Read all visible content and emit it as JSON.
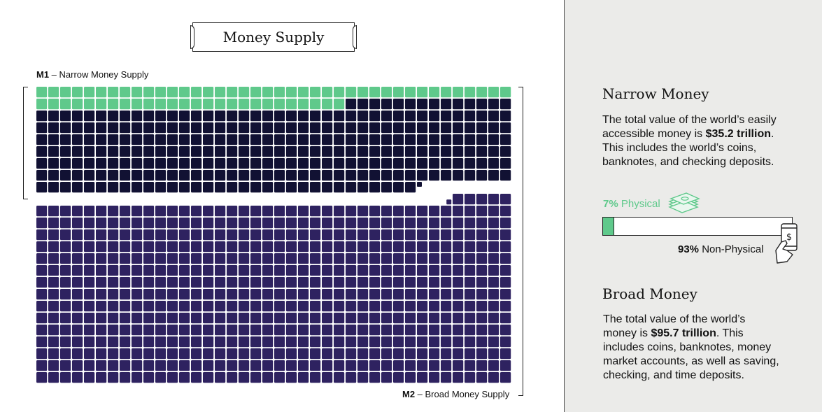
{
  "title": "Money Supply",
  "labels": {
    "m1_code": "M1",
    "m1_text": " – Narrow Money Supply",
    "m2_code": "M2",
    "m2_text": " – Broad Money Supply"
  },
  "colors": {
    "physical": "#5fc98b",
    "narrow_nonphysical": "#111133",
    "broad": "#2e2260"
  },
  "chart_data": {
    "type": "waffle",
    "columns": 40,
    "total_units": 957,
    "unit_value_trillions": 0.1,
    "segments": [
      {
        "name": "Physical",
        "units": 66
      },
      {
        "name": "Non-Physical",
        "units": 286
      },
      {
        "name": "Broad",
        "units": 605
      }
    ],
    "bar": {
      "physical_pct": 7,
      "non_physical_pct": 93
    }
  },
  "narrow": {
    "heading": "Narrow Money",
    "p1": "The total value of the world’s easily",
    "p2_pre": "accessible money is ",
    "p2_bold": "$35.2 trillion",
    "p2_post": ".",
    "p3": "This includes the world’s coins,",
    "p4": "banknotes, and checking deposits."
  },
  "physical_label": {
    "pct": "7%",
    "text": " Physical"
  },
  "nonphysical_label": {
    "pct": "93%",
    "text": " Non-Physical"
  },
  "broad": {
    "heading": "Broad Money",
    "p1": "The total value of the world’s",
    "p2_pre": "money is ",
    "p2_bold": "$95.7 trillion",
    "p2_post": ". This",
    "p3": "includes coins, banknotes, money",
    "p4": "market accounts, as well as saving,",
    "p5": "checking, and time deposits."
  }
}
